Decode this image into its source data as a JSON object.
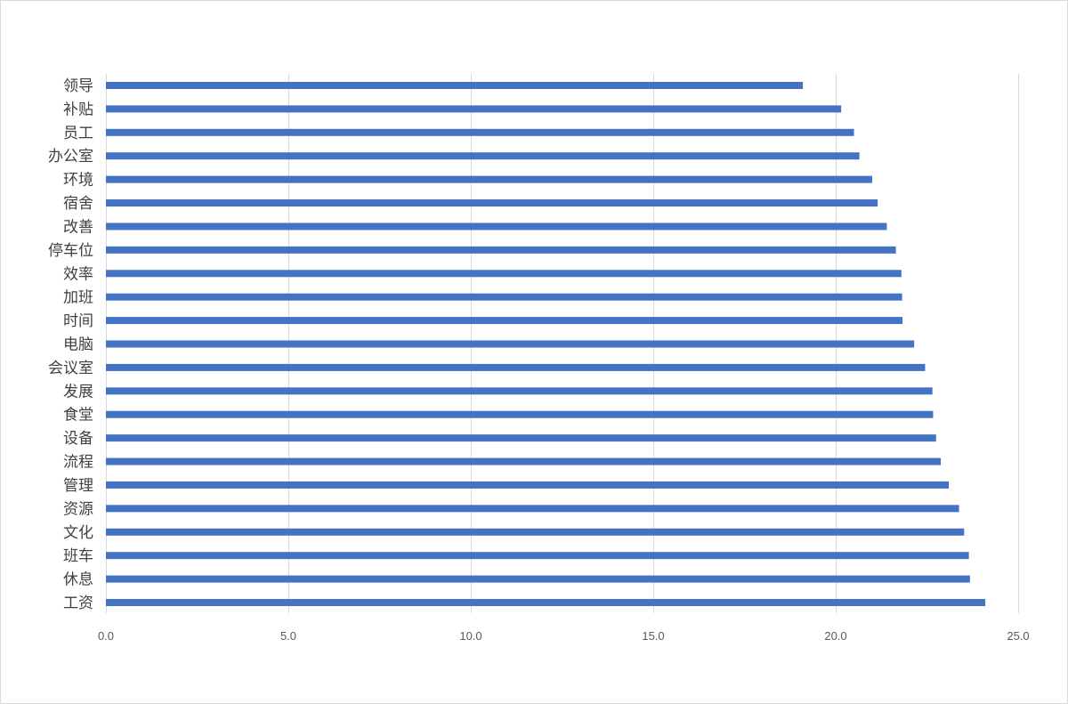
{
  "colors": {
    "bar": "#4472C4",
    "grid": "#D9D9D9",
    "label_text": "#404040",
    "tick_text": "#595959"
  },
  "chart_data": {
    "type": "bar",
    "orientation": "horizontal",
    "title": "",
    "xlabel": "",
    "ylabel": "",
    "categories": [
      "领导",
      "补贴",
      "员工",
      "办公室",
      "环境",
      "宿舍",
      "改善",
      "停车位",
      "效率",
      "加班",
      "时间",
      "电脑",
      "会议室",
      "发展",
      "食堂",
      "设备",
      "流程",
      "管理",
      "资源",
      "文化",
      "班车",
      "休息",
      "工资"
    ],
    "values": [
      19.1,
      20.15,
      20.5,
      20.65,
      21.0,
      21.15,
      21.4,
      21.65,
      21.8,
      21.82,
      21.83,
      22.15,
      22.45,
      22.65,
      22.67,
      22.75,
      22.88,
      23.1,
      23.38,
      23.52,
      23.65,
      23.68,
      24.1
    ],
    "xlim": [
      0,
      25
    ],
    "x_ticks": [
      "0.0",
      "5.0",
      "10.0",
      "15.0",
      "20.0",
      "25.0"
    ],
    "x_tick_values": [
      0,
      5,
      10,
      15,
      20,
      25
    ],
    "grid": true,
    "legend": "none"
  }
}
